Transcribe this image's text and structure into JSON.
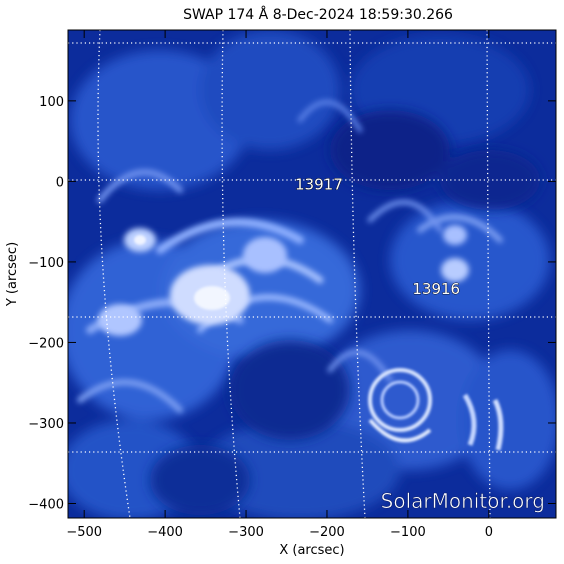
{
  "title": "SWAP 174 Å  8-Dec-2024 18:59:30.266",
  "xlabel": "X (arcsec)",
  "ylabel": "Y (arcsec)",
  "x_ticks": [
    {
      "value": -500,
      "label": "−500"
    },
    {
      "value": -400,
      "label": "−400"
    },
    {
      "value": -300,
      "label": "−300"
    },
    {
      "value": -200,
      "label": "−200"
    },
    {
      "value": -100,
      "label": "−100"
    },
    {
      "value": 0,
      "label": "0"
    }
  ],
  "y_ticks": [
    {
      "value": 100,
      "label": "100"
    },
    {
      "value": 0,
      "label": "0"
    },
    {
      "value": -100,
      "label": "−100"
    },
    {
      "value": -200,
      "label": "−200"
    },
    {
      "value": -300,
      "label": "−300"
    },
    {
      "value": -400,
      "label": "−400"
    }
  ],
  "xlim": [
    -520,
    83
  ],
  "ylim": [
    -418,
    188
  ],
  "regions": [
    {
      "label": "13917",
      "x": -210,
      "y": -10
    },
    {
      "label": "13916",
      "x": -65,
      "y": -140
    }
  ],
  "watermark": "SolarMonitor.org",
  "colors": {
    "background": "#0a2a9a",
    "bright": "#dfe8ff",
    "grid": "#ffffff"
  }
}
